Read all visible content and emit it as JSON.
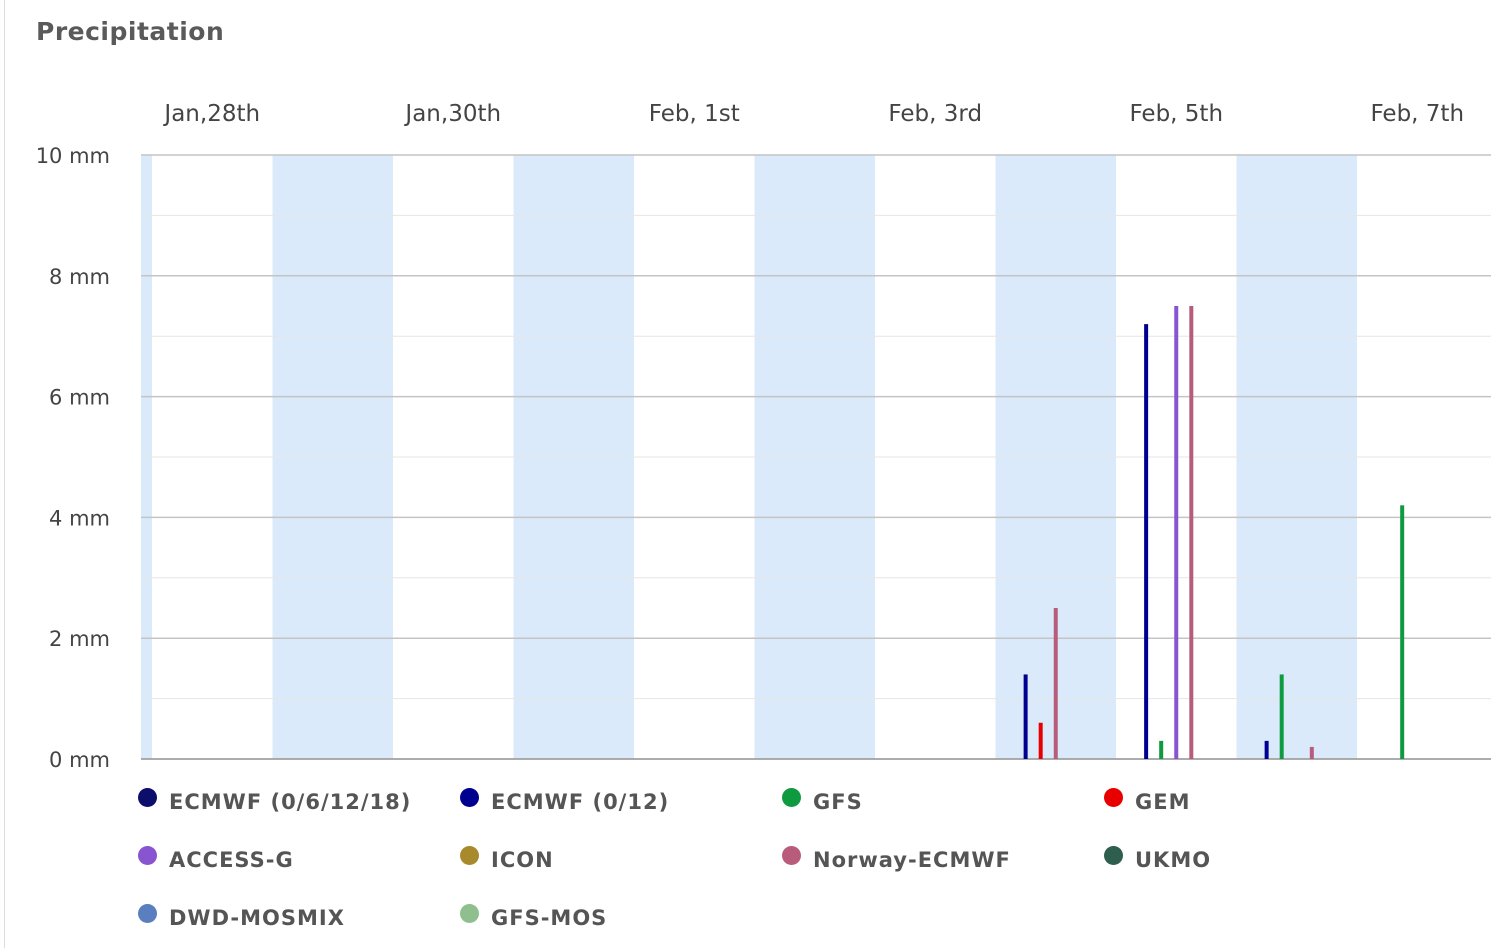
{
  "chart_data": {
    "type": "bar",
    "title": "Precipitation",
    "x_ticks": [
      "Jan,28th",
      "Jan,30th",
      "Feb, 1st",
      "Feb, 3rd",
      "Feb, 5th",
      "Feb, 7th"
    ],
    "y_ticks": [
      "10 mm",
      "8 mm",
      "6 mm",
      "4 mm",
      "2 mm",
      "0 mm"
    ],
    "ylim": [
      0,
      10
    ],
    "grid": true,
    "legend_position": "bottom",
    "shaded_days": [
      "Jan 28",
      "Jan 30",
      "Feb 1",
      "Feb 3",
      "Feb 5",
      "Feb 7"
    ],
    "series": [
      {
        "name": "ECMWF (0/6/12/18)",
        "color": "#0d0d6b",
        "points": []
      },
      {
        "name": "ECMWF (0/12)",
        "color": "#000090",
        "points": [
          {
            "x": "Feb 4 06:00",
            "y": 1.4
          },
          {
            "x": "Feb 5 06:00",
            "y": 7.2
          },
          {
            "x": "Feb 6 06:00",
            "y": 0.3
          }
        ]
      },
      {
        "name": "GFS",
        "color": "#0e9a3e",
        "points": [
          {
            "x": "Feb 5 09:00",
            "y": 0.3
          },
          {
            "x": "Feb 6 09:00",
            "y": 1.4
          },
          {
            "x": "Feb 7 09:00",
            "y": 4.2
          }
        ]
      },
      {
        "name": "GEM",
        "color": "#e80000",
        "points": [
          {
            "x": "Feb 4 09:00",
            "y": 0.6
          }
        ]
      },
      {
        "name": "ACCESS-G",
        "color": "#8854d0",
        "points": [
          {
            "x": "Feb 5 12:00",
            "y": 7.5
          }
        ]
      },
      {
        "name": "ICON",
        "color": "#a88a2c",
        "points": []
      },
      {
        "name": "Norway-ECMWF",
        "color": "#b85c7c",
        "points": [
          {
            "x": "Feb 4 12:00",
            "y": 2.5
          },
          {
            "x": "Feb 5 15:00",
            "y": 7.5
          },
          {
            "x": "Feb 6 15:00",
            "y": 0.2
          }
        ]
      },
      {
        "name": "UKMO",
        "color": "#2e5e4e",
        "points": []
      },
      {
        "name": "DWD-MOSMIX",
        "color": "#5a7fbf",
        "points": []
      },
      {
        "name": "GFS-MOS",
        "color": "#8fbf8f",
        "points": []
      }
    ]
  }
}
